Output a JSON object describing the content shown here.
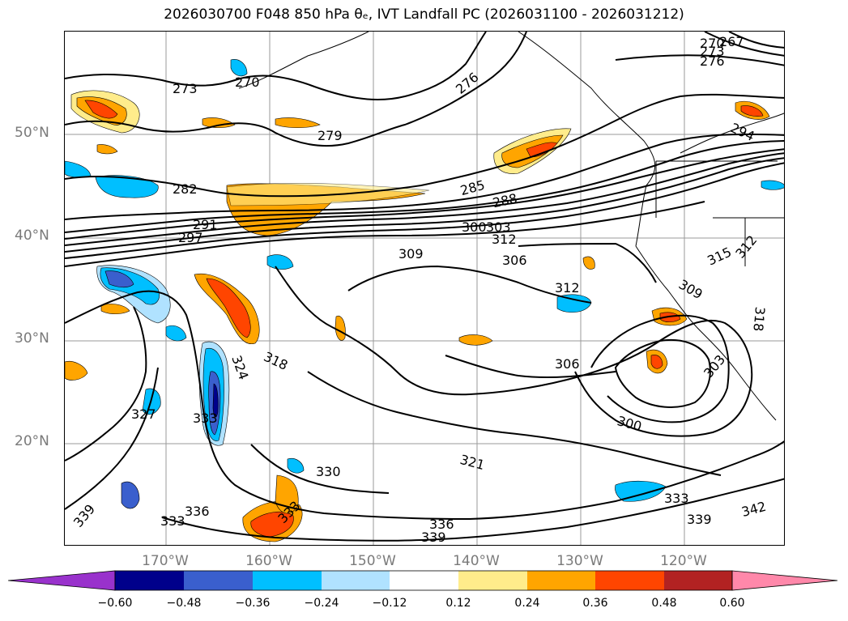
{
  "title": "2026030700 F048 850 hPa θₑ, IVT Landfall PC (2026031100 - 2026031212)",
  "map": {
    "latitude_labels": [
      "50°N",
      "40°N",
      "30°N",
      "20°N"
    ],
    "longitude_labels": [
      "170°W",
      "160°W",
      "150°W",
      "140°W",
      "130°W",
      "120°W"
    ],
    "contour_labels": [
      "273",
      "270",
      "276",
      "279",
      "282",
      "285",
      "288",
      "291",
      "297",
      "300",
      "303",
      "309",
      "312",
      "306",
      "315",
      "318",
      "312",
      "309",
      "312",
      "324",
      "327",
      "333",
      "336",
      "330",
      "321",
      "300",
      "306",
      "303",
      "333",
      "336",
      "339",
      "339",
      "333",
      "342",
      "267",
      "270",
      "273",
      "276",
      "294",
      "318"
    ]
  },
  "colorbar": {
    "ticks": [
      "−0.60",
      "−0.48",
      "−0.36",
      "−0.24",
      "−0.12",
      "0.12",
      "0.24",
      "0.36",
      "0.48",
      "0.60"
    ],
    "colors": [
      "#9932cc",
      "#00008b",
      "#3a5fcd",
      "#00bfff",
      "#b0e2ff",
      "#ffffff",
      "#ffec8b",
      "#ffa500",
      "#ff4500",
      "#b22222",
      "#ff88aa"
    ]
  }
}
